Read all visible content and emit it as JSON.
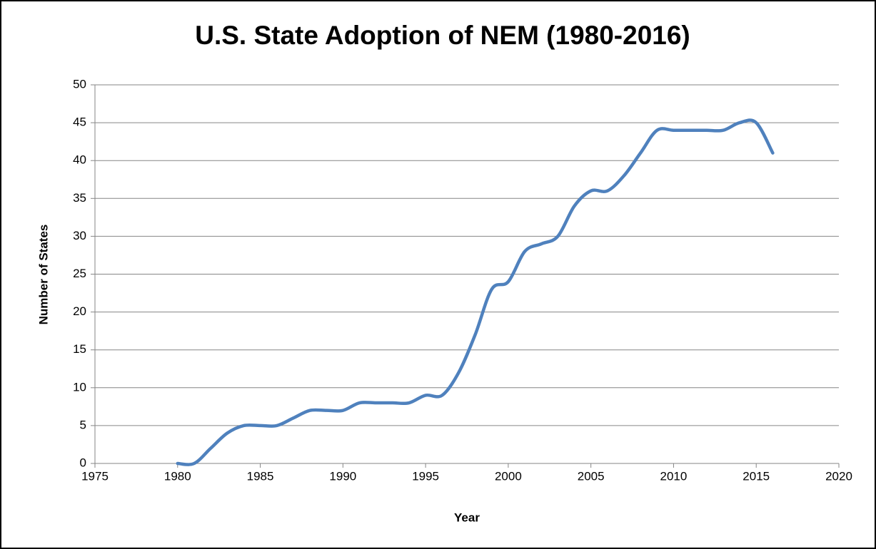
{
  "chart_data": {
    "type": "line",
    "title": "U.S. State Adoption of NEM (1980-2016)",
    "xlabel": "Year",
    "ylabel": "Number of States",
    "x": [
      1980,
      1981,
      1982,
      1983,
      1984,
      1985,
      1986,
      1987,
      1988,
      1989,
      1990,
      1991,
      1992,
      1993,
      1994,
      1995,
      1996,
      1997,
      1998,
      1999,
      2000,
      2001,
      2002,
      2003,
      2004,
      2005,
      2006,
      2007,
      2008,
      2009,
      2010,
      2011,
      2012,
      2013,
      2014,
      2015,
      2016
    ],
    "series": [
      {
        "color": "#4f81bd",
        "values": [
          0,
          0,
          2,
          4,
          5,
          5,
          5,
          6,
          7,
          7,
          7,
          8,
          8,
          8,
          8,
          9,
          9,
          12,
          17,
          23,
          24,
          28,
          29,
          30,
          34,
          36,
          36,
          38,
          41,
          44,
          44,
          44,
          44,
          44,
          45,
          45,
          41
        ]
      }
    ],
    "xlim": [
      1975,
      2020
    ],
    "xticks": [
      1975,
      1980,
      1985,
      1990,
      1995,
      2000,
      2005,
      2010,
      2015,
      2020
    ],
    "ylim": [
      0,
      50
    ],
    "yticks": [
      0,
      5,
      10,
      15,
      20,
      25,
      30,
      35,
      40,
      45,
      50
    ],
    "grid": true,
    "smooth": true
  }
}
